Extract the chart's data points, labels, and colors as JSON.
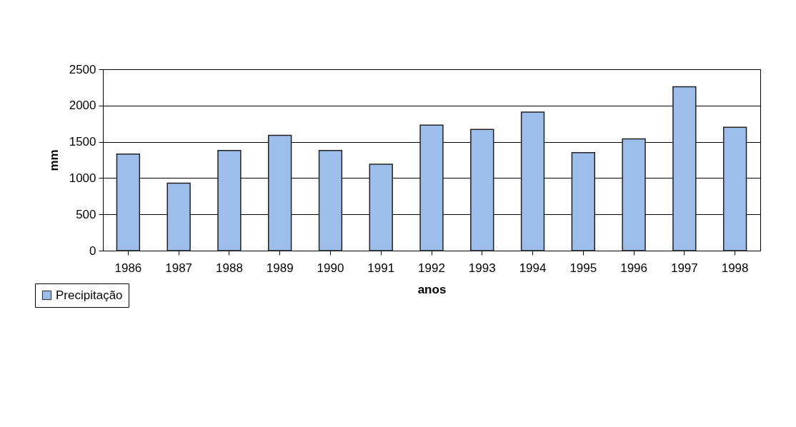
{
  "chart_data": {
    "type": "bar",
    "xlabel": "anos",
    "ylabel": "mm",
    "categories": [
      "1986",
      "1987",
      "1988",
      "1989",
      "1990",
      "1991",
      "1992",
      "1993",
      "1994",
      "1995",
      "1996",
      "1997",
      "1998"
    ],
    "series": [
      {
        "name": "Precipitação",
        "color": "#9dbdeb",
        "values": [
          1330,
          930,
          1380,
          1590,
          1380,
          1190,
          1730,
          1670,
          1910,
          1350,
          1540,
          2260,
          1700
        ]
      }
    ],
    "ylim": [
      0,
      2500
    ],
    "yticks": [
      0,
      500,
      1000,
      1500,
      2000,
      2500
    ],
    "grid": "y",
    "legend": "bottom left"
  }
}
